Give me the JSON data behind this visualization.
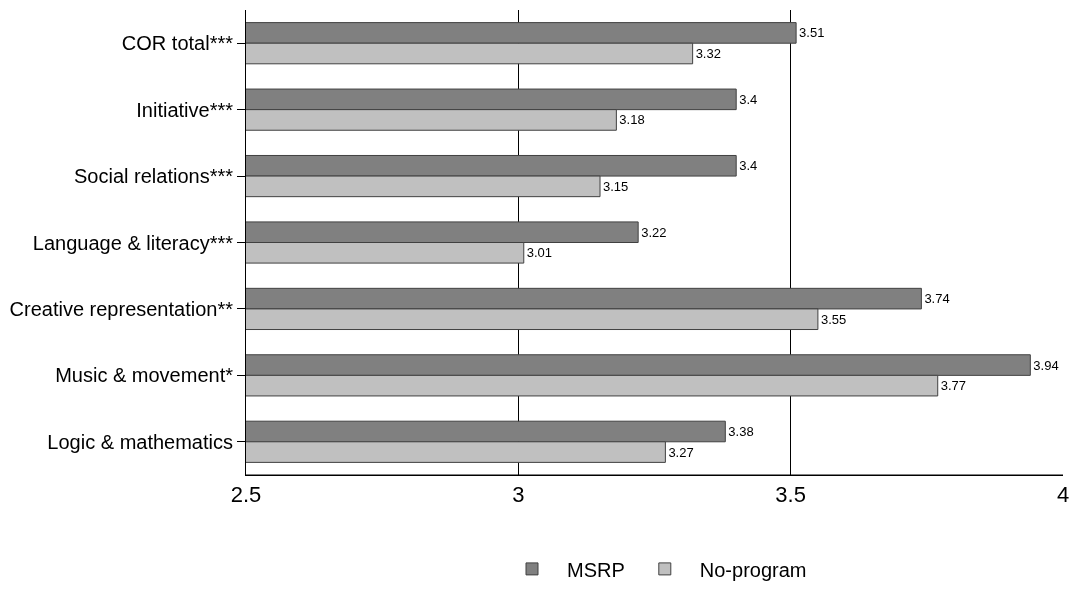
{
  "chart_data": {
    "type": "bar",
    "orientation": "horizontal",
    "categories": [
      "COR total***",
      "Initiative***",
      "Social relations***",
      "Language & literacy***",
      "Creative representation**",
      "Music & movement*",
      "Logic & mathematics"
    ],
    "series": [
      {
        "name": "MSRP",
        "color": "#808080",
        "values": [
          3.51,
          3.4,
          3.4,
          3.22,
          3.74,
          3.94,
          3.38
        ]
      },
      {
        "name": "No-program",
        "color": "#c0c0c0",
        "values": [
          3.32,
          3.18,
          3.15,
          3.01,
          3.55,
          3.77,
          3.27
        ]
      }
    ],
    "xlim": [
      2.5,
      4
    ],
    "xticks": [
      2.5,
      3,
      3.5,
      4
    ],
    "grid": "x",
    "legend": "bottom",
    "data_labels": true
  }
}
